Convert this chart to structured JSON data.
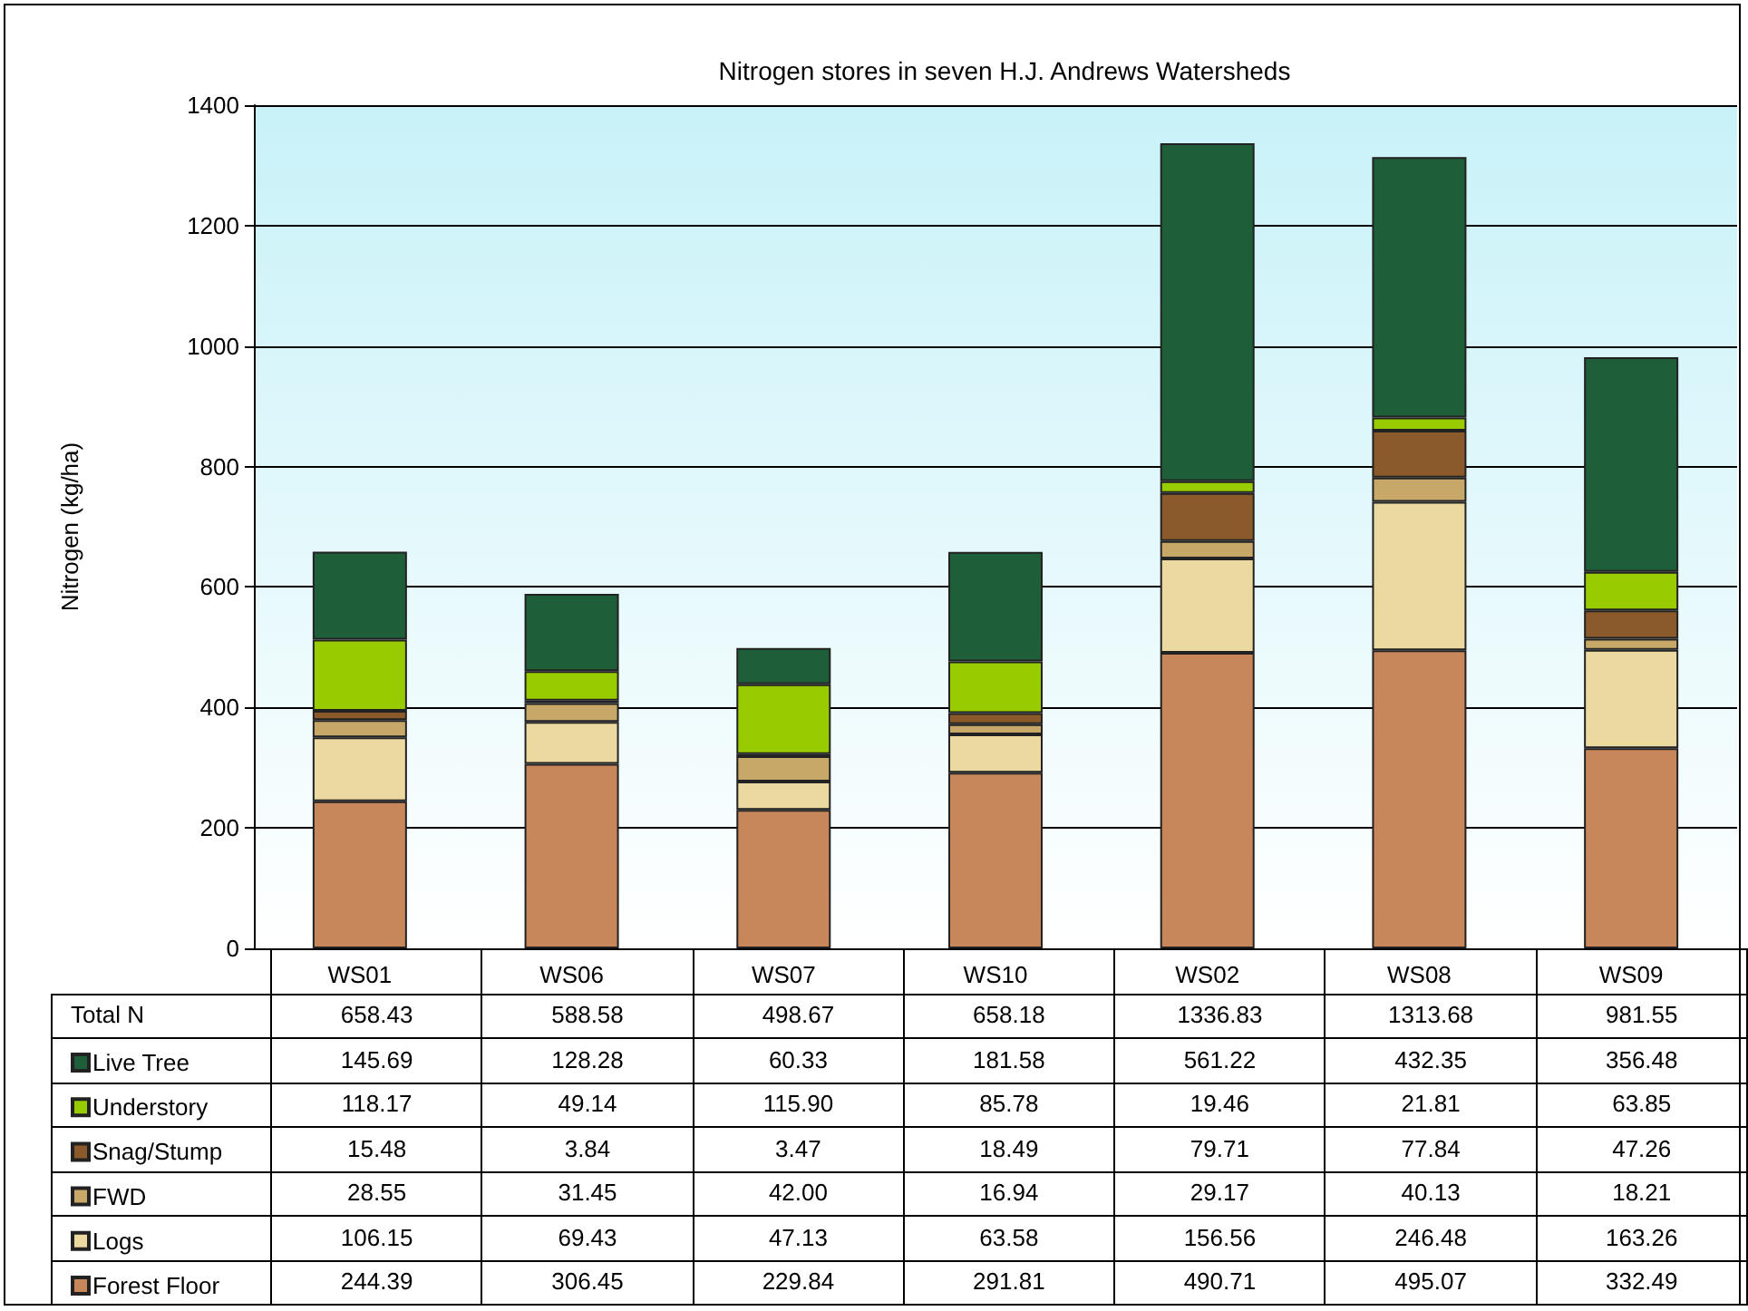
{
  "chart_data": {
    "type": "bar",
    "title": "Nitrogen stores in seven H.J. Andrews Watersheds",
    "ylabel": "Nitrogen (kg/ha)",
    "categories": [
      "WS01",
      "WS06",
      "WS07",
      "WS10",
      "WS02",
      "WS08",
      "WS09"
    ],
    "annotations": [
      "Total N"
    ],
    "stacked": true,
    "ylim": [
      0,
      1400
    ],
    "yticks": [
      0,
      200,
      400,
      600,
      800,
      1000,
      1200,
      1400
    ],
    "grid": "y",
    "legend": "bottom left",
    "totals": [
      "658.43",
      "588.58",
      "498.67",
      "658.18",
      "1336.83",
      "1313.68",
      "981.55"
    ],
    "series": [
      {
        "name": "Forest Floor",
        "color": "#c8875a",
        "values": [
          244.39,
          306.45,
          229.84,
          291.81,
          490.71,
          495.07,
          332.49
        ],
        "value_labels": [
          "244.39",
          "306.45",
          "229.84",
          "291.81",
          "490.71",
          "495.07",
          "332.49"
        ]
      },
      {
        "name": "Logs",
        "color": "#ecd9a0",
        "values": [
          106.15,
          69.43,
          47.13,
          63.58,
          156.56,
          246.48,
          163.26
        ],
        "value_labels": [
          "106.15",
          "69.43",
          "47.13",
          "63.58",
          "156.56",
          "246.48",
          "163.26"
        ]
      },
      {
        "name": "FWD",
        "color": "#c8a868",
        "values": [
          28.55,
          31.45,
          42.0,
          16.94,
          29.17,
          40.13,
          18.21
        ],
        "value_labels": [
          "28.55",
          "31.45",
          "42.00",
          "16.94",
          "29.17",
          "40.13",
          "18.21"
        ]
      },
      {
        "name": "Snag/Stump",
        "color": "#8b5a2b",
        "values": [
          15.48,
          3.84,
          3.47,
          18.49,
          79.71,
          77.84,
          47.26
        ],
        "value_labels": [
          "15.48",
          "3.84",
          "3.47",
          "18.49",
          "79.71",
          "77.84",
          "47.26"
        ]
      },
      {
        "name": "Understory",
        "color": "#99cc00",
        "values": [
          118.17,
          49.14,
          115.9,
          85.78,
          19.46,
          21.81,
          63.85
        ],
        "value_labels": [
          "118.17",
          "49.14",
          "115.90",
          "85.78",
          "19.46",
          "21.81",
          "63.85"
        ]
      },
      {
        "name": "Live Tree",
        "color": "#1e5e38",
        "values": [
          145.69,
          128.28,
          60.33,
          181.58,
          561.22,
          432.35,
          356.48
        ],
        "value_labels": [
          "145.69",
          "128.28",
          "60.33",
          "181.58",
          "561.22",
          "432.35",
          "356.48"
        ]
      }
    ]
  }
}
